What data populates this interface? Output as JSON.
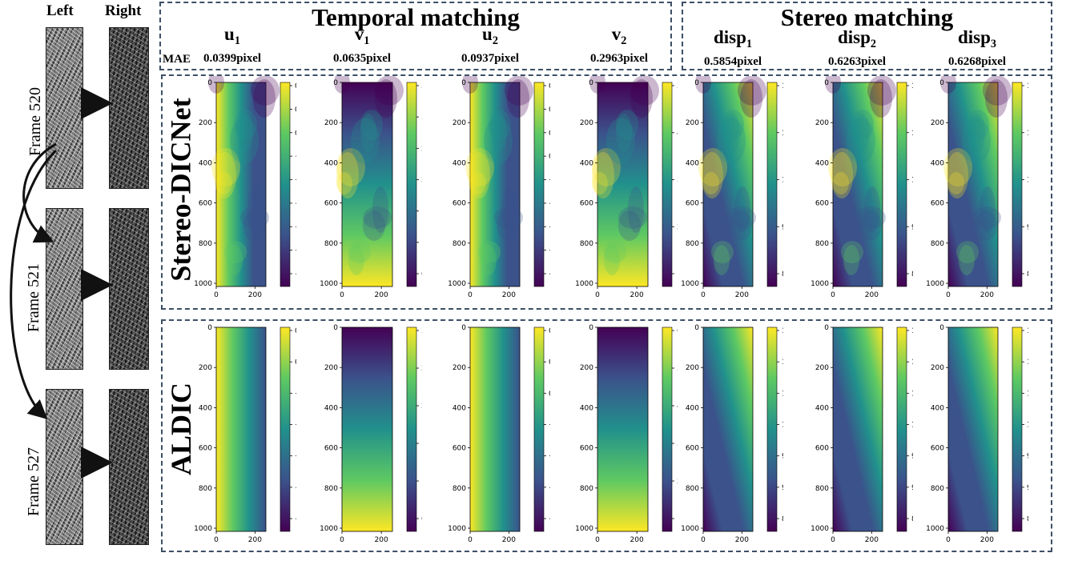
{
  "headers": {
    "temporal": "Temporal matching",
    "stereo": "Stereo matching",
    "mae": "MAE",
    "columns": [
      {
        "sym": "u",
        "sub": "1",
        "mae": "0.0399pixel"
      },
      {
        "sym": "v",
        "sub": "1",
        "mae": "0.0635pixel"
      },
      {
        "sym": "u",
        "sub": "2",
        "mae": "0.0937pixel"
      },
      {
        "sym": "v",
        "sub": "2",
        "mae": "0.2963pixel"
      },
      {
        "sym": "disp",
        "sub": "1",
        "mae": "0.5854pixel"
      },
      {
        "sym": "disp",
        "sub": "2",
        "mae": "0.6263pixel"
      },
      {
        "sym": "disp",
        "sub": "3",
        "mae": "0.6268pixel"
      }
    ]
  },
  "left_panel": {
    "left_label": "Left",
    "right_label": "Right",
    "frames": [
      "Frame 520",
      "Frame 521",
      "Frame 527"
    ]
  },
  "rows": [
    {
      "label": "Stereo-DICNet",
      "colorbars": [
        [
          "0.10",
          "0.05",
          "0.00",
          "−0.05",
          "−0.10",
          "−0.15",
          "−0.20",
          "−0.25",
          "−0.30"
        ],
        [
          "3.5",
          "3.0",
          "2.5",
          "2.0",
          "1.5",
          "1.0",
          "0.5"
        ],
        [
          "0.3",
          "0.2",
          "0.1",
          "0.0",
          "−0.1",
          "−0.2",
          "−0.3",
          "−0.4",
          "−0.5"
        ],
        [
          "5",
          "4",
          "3",
          "2",
          "1"
        ],
        [
          "12",
          "11",
          "10",
          "9",
          "8"
        ],
        [
          "12",
          "11",
          "10",
          "9",
          "8"
        ],
        [
          "12",
          "11",
          "10",
          "9",
          "8"
        ]
      ]
    },
    {
      "label": "ALDIC",
      "colorbars": [
        [
          "0.05",
          "0.00",
          "−0.05",
          "−0.10",
          "−0.15",
          "−0.20",
          "−0.25"
        ],
        [
          "3.0",
          "2.5",
          "2.0",
          "1.5",
          "1.0",
          "0.5"
        ],
        [
          "0.2",
          "0.1",
          "0.0",
          "−0.1",
          "−0.2",
          "−0.3",
          "−0.4"
        ],
        [
          "6",
          "5",
          "4",
          "3",
          "2",
          "1"
        ],
        [
          "11.5",
          "11.0",
          "10.5",
          "10.0",
          "9.5",
          "9.0",
          "8.5"
        ],
        [
          "11.5",
          "11.0",
          "10.5",
          "10.0",
          "9.5",
          "9.0",
          "8.5"
        ],
        [
          "11.5",
          "11.0",
          "10.5",
          "10.0",
          "9.5",
          "9.0",
          "8.5"
        ]
      ]
    }
  ],
  "axis": {
    "y_ticks": [
      "0",
      "200",
      "400",
      "600",
      "800",
      "1000"
    ],
    "x_ticks": [
      "0",
      "200"
    ]
  },
  "colors": {
    "box_border": "#3d4f66",
    "viridis": [
      "#440154",
      "#3b528b",
      "#21918c",
      "#5ec962",
      "#fde725"
    ]
  }
}
